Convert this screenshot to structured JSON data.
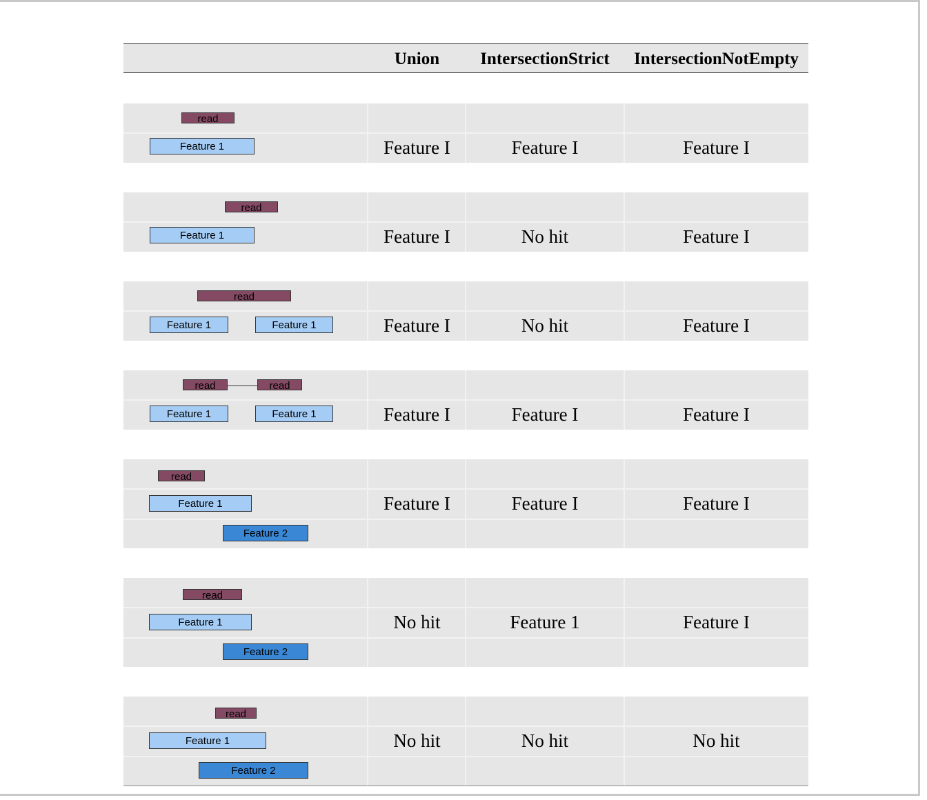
{
  "header": {
    "columns": [
      "Union",
      "IntersectionStrict",
      "IntersectionNotEmpty"
    ]
  },
  "colors": {
    "read": "#844963",
    "feature_1": "#a4ccf4",
    "feature_2": "#3a87d6",
    "row_background": "#e6e6e6"
  },
  "labels": {
    "read": "read",
    "feature_1": "Feature 1",
    "feature_2": "Feature 2"
  },
  "rows": [
    {
      "union": "Feature I",
      "strict": "Feature I",
      "not_empty": "Feature I"
    },
    {
      "union": "Feature I",
      "strict": "No hit",
      "not_empty": "Feature I"
    },
    {
      "union": "Feature I",
      "strict": "No hit",
      "not_empty": "Feature I"
    },
    {
      "union": "Feature I",
      "strict": "Feature I",
      "not_empty": "Feature I"
    },
    {
      "union": "Feature I",
      "strict": "Feature I",
      "not_empty": "Feature I"
    },
    {
      "union": "No hit",
      "strict": "Feature 1",
      "not_empty": "Feature I"
    },
    {
      "union": "No hit",
      "strict": "No hit",
      "not_empty": "No hit"
    }
  ]
}
